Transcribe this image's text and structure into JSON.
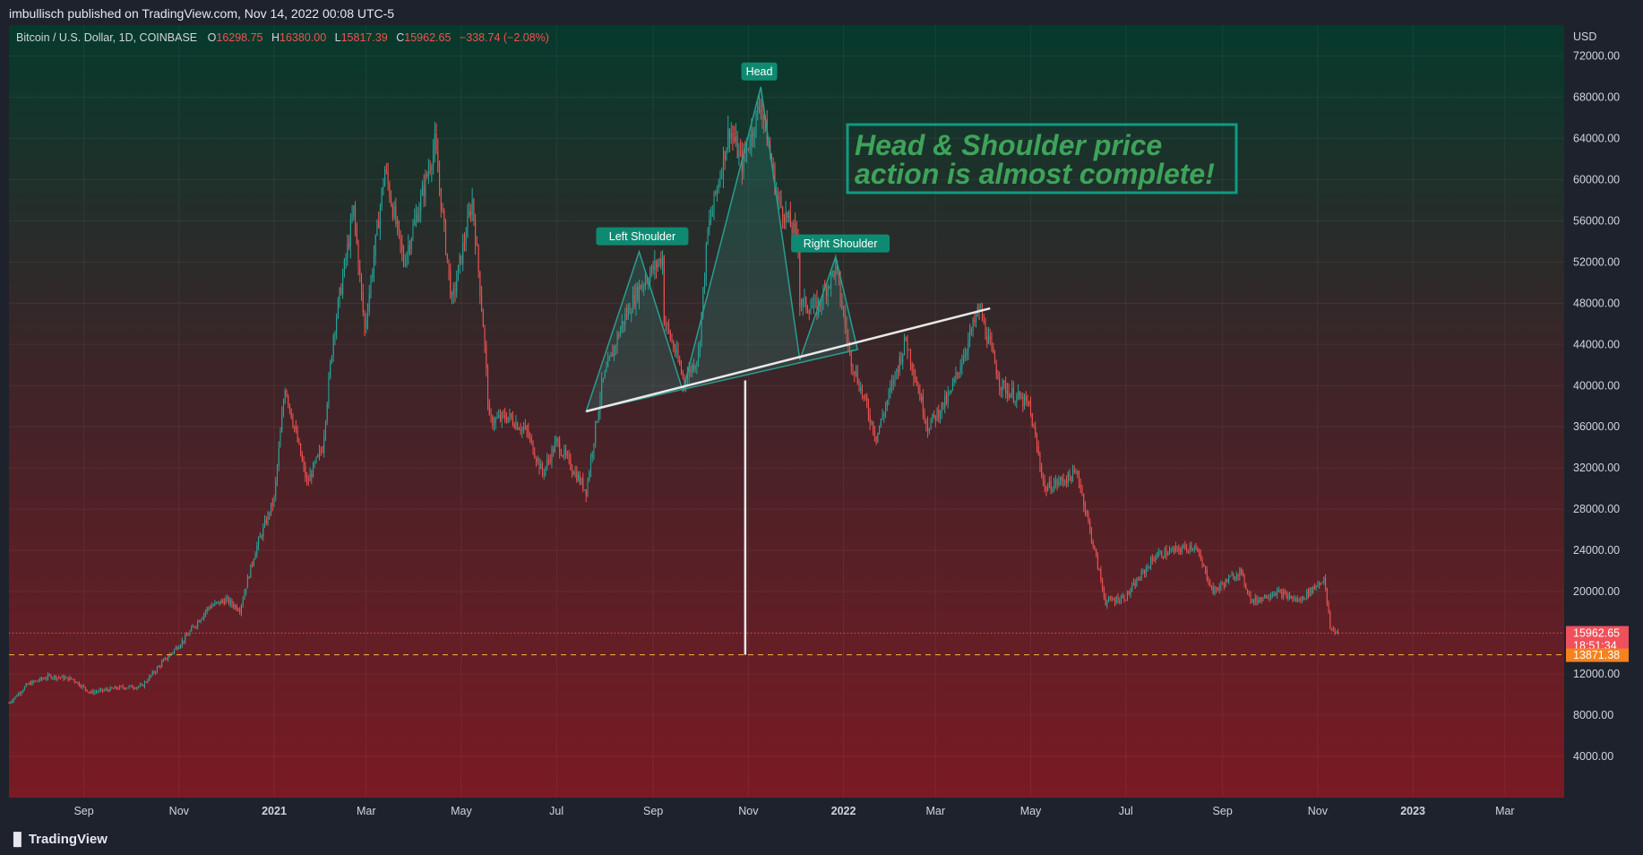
{
  "header": {
    "published_line": "imbullisch published on TradingView.com, Nov 14, 2022 00:08 UTC-5",
    "symbol": "Bitcoin / U.S. Dollar, 1D, COINBASE",
    "o_label": "O",
    "o_value": "16298.75",
    "h_label": "H",
    "h_value": "16380.00",
    "l_label": "L",
    "l_value": "15817.39",
    "c_label": "C",
    "c_value": "15962.65",
    "change": "−338.74 (−2.08%)"
  },
  "footer": {
    "brand": "TradingView",
    "logo_icon": "tradingview-logo-icon"
  },
  "annotation": {
    "line1": "Head & Shoulder price",
    "line2": "action is almost complete!",
    "color": "#3ea35a"
  },
  "price_tags": {
    "last_price": "15962.65",
    "countdown": "18:51:34",
    "target_price": "13871.38"
  },
  "colors": {
    "up": "#26a69a",
    "down": "#ef5350",
    "pattern_fill": "#2a9d8f",
    "label_bg": "#0f8a72",
    "gradient_top": "#063a2c",
    "gradient_bottom": "#7a1a24",
    "target_line": "#f0a040"
  },
  "chart_data": {
    "type": "candlestick",
    "title": "Bitcoin / U.S. Dollar, 1D, COINBASE",
    "currency": "USD",
    "ylim": [
      0,
      75000
    ],
    "yticks": [
      4000,
      8000,
      12000,
      16000,
      20000,
      24000,
      28000,
      32000,
      36000,
      40000,
      44000,
      48000,
      52000,
      56000,
      60000,
      64000,
      68000,
      72000
    ],
    "ytick_labels": [
      "4000.00",
      "8000.00",
      "12000.00",
      "",
      "20000.00",
      "24000.00",
      "28000.00",
      "32000.00",
      "36000.00",
      "40000.00",
      "44000.00",
      "48000.00",
      "52000.00",
      "56000.00",
      "60000.00",
      "64000.00",
      "68000.00",
      "72000.00"
    ],
    "xlim": [
      "2020-07-15",
      "2023-04-08"
    ],
    "xticks": [
      {
        "date": "2020-09-01",
        "label": "Sep",
        "bold": false
      },
      {
        "date": "2020-11-01",
        "label": "Nov",
        "bold": false
      },
      {
        "date": "2021-01-01",
        "label": "2021",
        "bold": true
      },
      {
        "date": "2021-03-01",
        "label": "Mar",
        "bold": false
      },
      {
        "date": "2021-05-01",
        "label": "May",
        "bold": false
      },
      {
        "date": "2021-07-01",
        "label": "Jul",
        "bold": false
      },
      {
        "date": "2021-09-01",
        "label": "Sep",
        "bold": false
      },
      {
        "date": "2021-11-01",
        "label": "Nov",
        "bold": false
      },
      {
        "date": "2022-01-01",
        "label": "2022",
        "bold": true
      },
      {
        "date": "2022-03-01",
        "label": "Mar",
        "bold": false
      },
      {
        "date": "2022-05-01",
        "label": "May",
        "bold": false
      },
      {
        "date": "2022-07-01",
        "label": "Jul",
        "bold": false
      },
      {
        "date": "2022-09-01",
        "label": "Sep",
        "bold": false
      },
      {
        "date": "2022-11-01",
        "label": "Nov",
        "bold": false
      },
      {
        "date": "2023-01-01",
        "label": "2023",
        "bold": true
      },
      {
        "date": "2023-03-01",
        "label": "Mar",
        "bold": false
      }
    ],
    "grid": true,
    "price_path": [
      [
        "2020-07-15",
        9200
      ],
      [
        "2020-07-27",
        11000
      ],
      [
        "2020-08-10",
        11800
      ],
      [
        "2020-08-25",
        11500
      ],
      [
        "2020-09-05",
        10200
      ],
      [
        "2020-09-25",
        10700
      ],
      [
        "2020-10-08",
        10800
      ],
      [
        "2020-10-20",
        12900
      ],
      [
        "2020-11-05",
        15500
      ],
      [
        "2020-11-20",
        18500
      ],
      [
        "2020-12-01",
        19200
      ],
      [
        "2020-12-10",
        18300
      ],
      [
        "2020-12-20",
        24000
      ],
      [
        "2021-01-01",
        29000
      ],
      [
        "2021-01-08",
        40000
      ],
      [
        "2021-01-22",
        30500
      ],
      [
        "2021-02-01",
        34000
      ],
      [
        "2021-02-08",
        45000
      ],
      [
        "2021-02-21",
        57000
      ],
      [
        "2021-02-28",
        45500
      ],
      [
        "2021-03-13",
        61000
      ],
      [
        "2021-03-25",
        52000
      ],
      [
        "2021-04-05",
        58000
      ],
      [
        "2021-04-14",
        63500
      ],
      [
        "2021-04-25",
        48000
      ],
      [
        "2021-05-08",
        58000
      ],
      [
        "2021-05-15",
        46000
      ],
      [
        "2021-05-19",
        36500
      ],
      [
        "2021-05-31",
        37000
      ],
      [
        "2021-06-12",
        35500
      ],
      [
        "2021-06-22",
        31500
      ],
      [
        "2021-07-01",
        34500
      ],
      [
        "2021-07-20",
        29800
      ],
      [
        "2021-07-30",
        40000
      ],
      [
        "2021-08-12",
        46000
      ],
      [
        "2021-08-23",
        49500
      ],
      [
        "2021-09-07",
        52500
      ],
      [
        "2021-09-08",
        46500
      ],
      [
        "2021-09-21",
        40500
      ],
      [
        "2021-09-30",
        43000
      ],
      [
        "2021-10-06",
        55000
      ],
      [
        "2021-10-20",
        65000
      ],
      [
        "2021-10-28",
        61500
      ],
      [
        "2021-11-09",
        67500
      ],
      [
        "2021-11-20",
        58000
      ],
      [
        "2021-12-03",
        54000
      ],
      [
        "2021-12-04",
        48000
      ],
      [
        "2021-12-15",
        47500
      ],
      [
        "2021-12-27",
        51500
      ],
      [
        "2022-01-05",
        43000
      ],
      [
        "2022-01-22",
        35000
      ],
      [
        "2022-02-10",
        44500
      ],
      [
        "2022-02-24",
        36000
      ],
      [
        "2022-03-10",
        39000
      ],
      [
        "2022-03-29",
        47500
      ],
      [
        "2022-04-12",
        40000
      ],
      [
        "2022-04-30",
        38000
      ],
      [
        "2022-05-10",
        30000
      ],
      [
        "2022-05-31",
        31500
      ],
      [
        "2022-06-13",
        22500
      ],
      [
        "2022-06-18",
        19000
      ],
      [
        "2022-07-01",
        19500
      ],
      [
        "2022-07-20",
        23500
      ],
      [
        "2022-08-14",
        24500
      ],
      [
        "2022-08-26",
        20000
      ],
      [
        "2022-09-12",
        22000
      ],
      [
        "2022-09-20",
        19000
      ],
      [
        "2022-10-05",
        20000
      ],
      [
        "2022-10-20",
        19100
      ],
      [
        "2022-11-05",
        21300
      ],
      [
        "2022-11-09",
        16500
      ],
      [
        "2022-11-14",
        15962.65
      ]
    ],
    "pattern": {
      "shape_points": [
        [
          "2021-07-20",
          37500
        ],
        [
          "2021-08-23",
          53000
        ],
        [
          "2021-09-20",
          39500
        ],
        [
          "2021-11-09",
          69000
        ],
        [
          "2021-12-04",
          42500
        ],
        [
          "2021-12-27",
          52500
        ],
        [
          "2022-01-10",
          43500
        ]
      ],
      "neckline": [
        [
          "2021-07-20",
          37500
        ],
        [
          "2022-04-05",
          47500
        ]
      ],
      "target_line": [
        [
          "2021-10-30",
          40500
        ],
        [
          "2021-10-30",
          13871.38
        ]
      ],
      "labels": [
        {
          "text": "Left Shoulder",
          "date": "2021-08-25",
          "value": 54500
        },
        {
          "text": "Head",
          "date": "2021-11-08",
          "value": 70500
        },
        {
          "text": "Right Shoulder",
          "date": "2021-12-30",
          "value": 53800
        }
      ]
    },
    "last_price": 15962.65,
    "target_price": 13871.38
  }
}
